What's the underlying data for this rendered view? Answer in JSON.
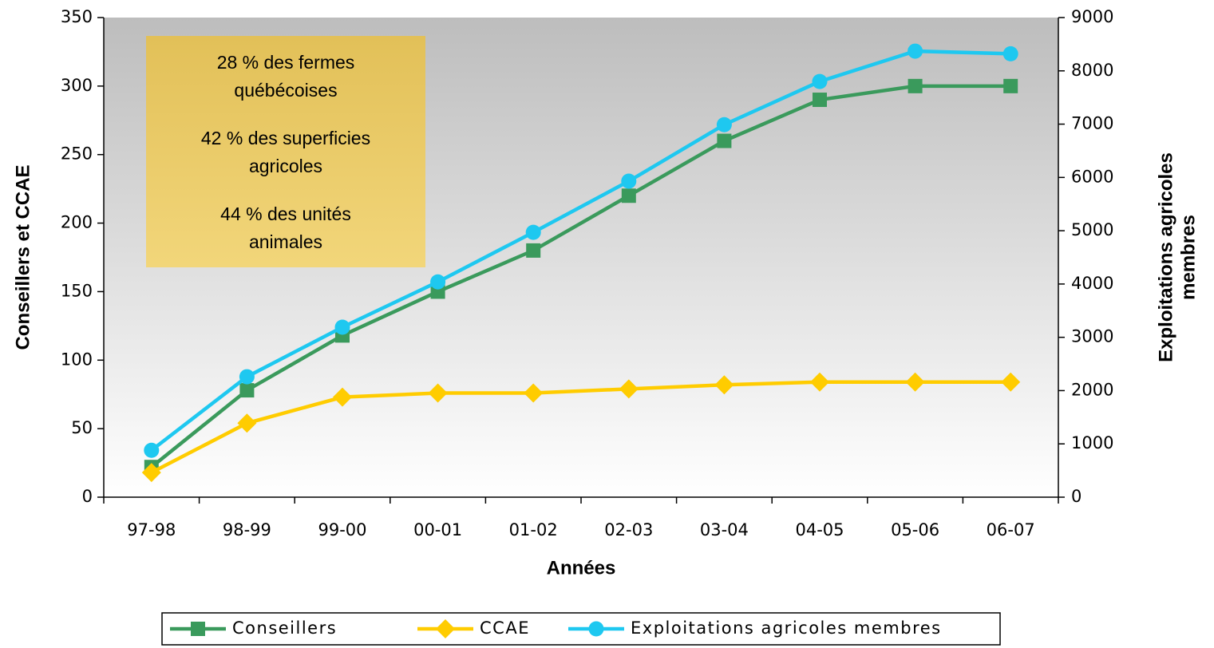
{
  "chart_data": {
    "type": "line",
    "x_label": "Années",
    "y_label": "Conseillers et CCAE",
    "y2_label": [
      "Exploitations agricoles",
      "membres"
    ],
    "annotations": [
      [
        "28 % des fermes",
        "québécoises"
      ],
      [
        "42 % des superficies",
        "agricoles"
      ],
      [
        "44 % des unités",
        "animales"
      ]
    ],
    "categories": [
      "97-98",
      "98-99",
      "99-00",
      "00-01",
      "01-02",
      "02-03",
      "03-04",
      "04-05",
      "05-06",
      "06-07"
    ],
    "series": [
      {
        "name": "Conseillers",
        "color": "#3a9a5c",
        "marker": "square",
        "values": [
          22,
          78,
          118,
          150,
          180,
          220,
          260,
          290,
          300,
          300
        ]
      },
      {
        "name": "CCAE",
        "color": "#ffcc00",
        "marker": "diamond",
        "values": [
          18,
          54,
          73,
          76,
          76,
          79,
          82,
          84,
          84,
          84
        ]
      },
      {
        "name": "Exploitations agricoles membres",
        "color": "#1ec8f0",
        "marker": "circle",
        "axis": "y2",
        "values": [
          880,
          2260,
          3190,
          4040,
          4970,
          5930,
          6990,
          7800,
          8370,
          8320
        ]
      }
    ],
    "ylim": [
      0,
      350
    ],
    "yticks": [
      0,
      50,
      100,
      150,
      200,
      250,
      300,
      350
    ],
    "y2lim": [
      0,
      9000
    ],
    "y2ticks": [
      0,
      1000,
      2000,
      3000,
      4000,
      5000,
      6000,
      7000,
      8000,
      9000
    ],
    "legend": "bottom"
  }
}
